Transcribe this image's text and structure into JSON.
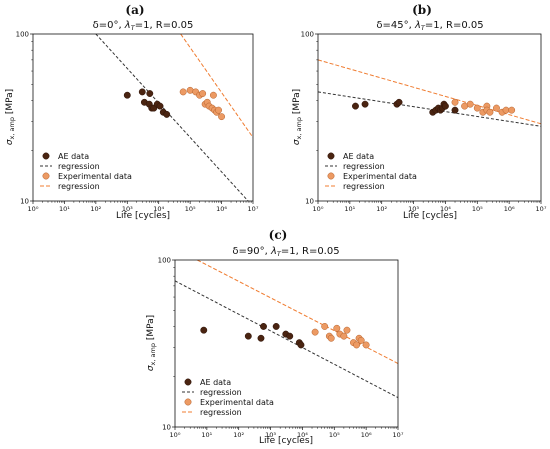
{
  "chart_data": [
    {
      "type": "scatter",
      "panel_label": "(a)",
      "title_parts": [
        "δ=0°, ",
        "λ",
        "T",
        "=1, R=0.05"
      ],
      "xlabel": "Life [cycles]",
      "ylabel_parts": [
        "σ",
        "x, amp",
        " [MPa]"
      ],
      "x_scale": "log",
      "y_scale": "log",
      "xlim": [
        1,
        10000000
      ],
      "ylim": [
        10,
        100
      ],
      "x_ticks": [
        "10⁰",
        "10¹",
        "10²",
        "10³",
        "10⁴",
        "10⁵",
        "10⁶",
        "10⁷"
      ],
      "y_ticks": [
        "10",
        "100"
      ],
      "legend_position": "lower-left",
      "series": [
        {
          "name": "AE data",
          "kind": "points",
          "color": "#4a2411",
          "points": [
            [
              1000,
              43
            ],
            [
              3000,
              45
            ],
            [
              3500,
              39
            ],
            [
              5000,
              38
            ],
            [
              5200,
              44
            ],
            [
              6000,
              36
            ],
            [
              7000,
              36
            ],
            [
              9000,
              38
            ],
            [
              11000,
              37
            ],
            [
              14000,
              34
            ],
            [
              18000,
              33
            ]
          ]
        },
        {
          "name": "regression",
          "kind": "line",
          "color": "#333333",
          "points": [
            [
              100,
              100
            ],
            [
              7000000,
              10
            ]
          ]
        },
        {
          "name": "Experimental data",
          "kind": "points",
          "color": "#ec9a63",
          "points": [
            [
              60000,
              45
            ],
            [
              100000,
              46
            ],
            [
              150000,
              45
            ],
            [
              200000,
              43
            ],
            [
              250000,
              44
            ],
            [
              300000,
              38
            ],
            [
              350000,
              39
            ],
            [
              400000,
              37
            ],
            [
              500000,
              36
            ],
            [
              550000,
              43
            ],
            [
              600000,
              35
            ],
            [
              700000,
              34
            ],
            [
              800000,
              35
            ],
            [
              1000000,
              32
            ]
          ]
        },
        {
          "name": "regression",
          "kind": "line",
          "color": "#f07d32",
          "points": [
            [
              50000,
              100
            ],
            [
              10000000,
              24
            ]
          ]
        }
      ]
    },
    {
      "type": "scatter",
      "panel_label": "(b)",
      "title_parts": [
        "δ=45°, ",
        "λ",
        "T",
        "=1, R=0.05"
      ],
      "xlabel": "Life [cycles]",
      "ylabel_parts": [
        "σ",
        "x, amp",
        " [MPa]"
      ],
      "x_scale": "log",
      "y_scale": "log",
      "xlim": [
        1,
        10000000
      ],
      "ylim": [
        10,
        100
      ],
      "x_ticks": [
        "10⁰",
        "10¹",
        "10²",
        "10³",
        "10⁴",
        "10⁵",
        "10⁶",
        "10⁷"
      ],
      "y_ticks": [
        "10",
        "100"
      ],
      "legend_position": "lower-left",
      "series": [
        {
          "name": "AE data",
          "kind": "points",
          "color": "#4a2411",
          "points": [
            [
              15,
              37
            ],
            [
              30,
              38
            ],
            [
              300,
              38
            ],
            [
              350,
              39
            ],
            [
              4000,
              34
            ],
            [
              5000,
              35
            ],
            [
              6000,
              36
            ],
            [
              7000,
              35
            ],
            [
              8000,
              36
            ],
            [
              9000,
              38
            ],
            [
              10000,
              37
            ],
            [
              20000,
              35
            ]
          ]
        },
        {
          "name": "regression",
          "kind": "line",
          "color": "#333333",
          "points": [
            [
              1,
              45
            ],
            [
              10000000,
              28
            ]
          ]
        },
        {
          "name": "Experimental data",
          "kind": "points",
          "color": "#ec9a63",
          "points": [
            [
              20000,
              39
            ],
            [
              40000,
              37
            ],
            [
              60000,
              38
            ],
            [
              100000,
              36
            ],
            [
              150000,
              34
            ],
            [
              200000,
              37
            ],
            [
              200000,
              35
            ],
            [
              250000,
              34
            ],
            [
              400000,
              36
            ],
            [
              600000,
              34
            ],
            [
              800000,
              35
            ],
            [
              1200000,
              35
            ]
          ]
        },
        {
          "name": "regression",
          "kind": "line",
          "color": "#f07d32",
          "points": [
            [
              1,
              70
            ],
            [
              10000000,
              29
            ]
          ]
        }
      ]
    },
    {
      "type": "scatter",
      "panel_label": "(c)",
      "title_parts": [
        "δ=90°, ",
        "λ",
        "T",
        "=1, R=0.05"
      ],
      "xlabel": "Life [cycles]",
      "ylabel_parts": [
        "σ",
        "x, amp",
        " [MPa]"
      ],
      "x_scale": "log",
      "y_scale": "log",
      "xlim": [
        1,
        10000000
      ],
      "ylim": [
        10,
        100
      ],
      "x_ticks": [
        "10⁰",
        "10¹",
        "10²",
        "10³",
        "10⁴",
        "10⁵",
        "10⁶",
        "10⁷"
      ],
      "y_ticks": [
        "10",
        "100"
      ],
      "legend_position": "lower-left",
      "series": [
        {
          "name": "AE data",
          "kind": "points",
          "color": "#4a2411",
          "points": [
            [
              8,
              38
            ],
            [
              200,
              35
            ],
            [
              500,
              34
            ],
            [
              600,
              40
            ],
            [
              1500,
              40
            ],
            [
              3000,
              36
            ],
            [
              4000,
              35
            ],
            [
              8000,
              32
            ],
            [
              9000,
              31
            ]
          ]
        },
        {
          "name": "regression",
          "kind": "line",
          "color": "#333333",
          "points": [
            [
              1,
              75
            ],
            [
              10000000,
              15
            ]
          ]
        },
        {
          "name": "Experimental data",
          "kind": "points",
          "color": "#ec9a63",
          "points": [
            [
              25000,
              37
            ],
            [
              50000,
              40
            ],
            [
              70000,
              35
            ],
            [
              80000,
              34
            ],
            [
              120000,
              39
            ],
            [
              150000,
              36
            ],
            [
              200000,
              35
            ],
            [
              250000,
              38
            ],
            [
              400000,
              32
            ],
            [
              500000,
              31
            ],
            [
              600000,
              34
            ],
            [
              700000,
              33
            ],
            [
              1000000,
              31
            ]
          ]
        },
        {
          "name": "regression",
          "kind": "line",
          "color": "#f07d32",
          "points": [
            [
              5,
              100
            ],
            [
              10000000,
              24
            ]
          ]
        }
      ]
    }
  ]
}
